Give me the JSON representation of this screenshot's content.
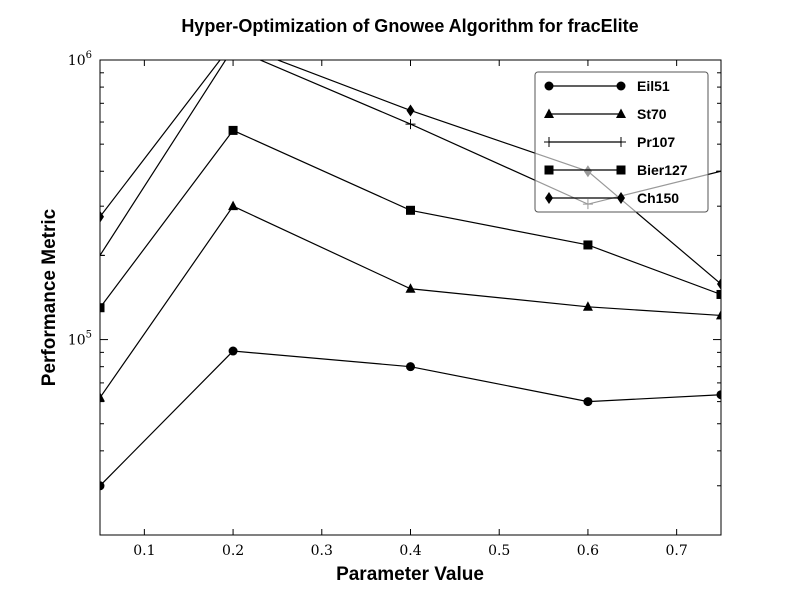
{
  "chart_data": {
    "type": "line",
    "title": "Hyper-Optimization of Gnowee Algorithm for fracElite",
    "xlabel": "Parameter Value",
    "ylabel": "Performance Metric",
    "xscale": "linear",
    "yscale": "log",
    "xlim": [
      0.05,
      0.75
    ],
    "ylim": [
      20000,
      1000000
    ],
    "x_ticks": [
      0.1,
      0.2,
      0.3,
      0.4,
      0.5,
      0.6,
      0.7
    ],
    "x_tick_labels": [
      "0.1",
      "0.2",
      "0.3",
      "0.4",
      "0.5",
      "0.6",
      "0.7"
    ],
    "y_major_ticks": [
      100000,
      1000000
    ],
    "y_tick_labels": [
      {
        "base": "10",
        "exp": "5"
      },
      {
        "base": "10",
        "exp": "6"
      }
    ],
    "grid": false,
    "legend_position": "top-right",
    "x": [
      0.05,
      0.2,
      0.4,
      0.6,
      0.75
    ],
    "series": [
      {
        "name": "Eil51",
        "marker": "circle",
        "values": [
          30000,
          91000,
          80000,
          60000,
          63500
        ]
      },
      {
        "name": "St70",
        "marker": "triangle",
        "values": [
          62000,
          300000,
          152000,
          131000,
          122000
        ]
      },
      {
        "name": "Pr107",
        "marker": "plus",
        "values": [
          200000,
          1100000,
          590000,
          305000,
          400000
        ]
      },
      {
        "name": "Bier127",
        "marker": "square",
        "values": [
          130000,
          560000,
          290000,
          218000,
          145000
        ]
      },
      {
        "name": "Ch150",
        "marker": "diamond",
        "values": [
          275000,
          1150000,
          660000,
          400000,
          158000
        ]
      }
    ]
  }
}
